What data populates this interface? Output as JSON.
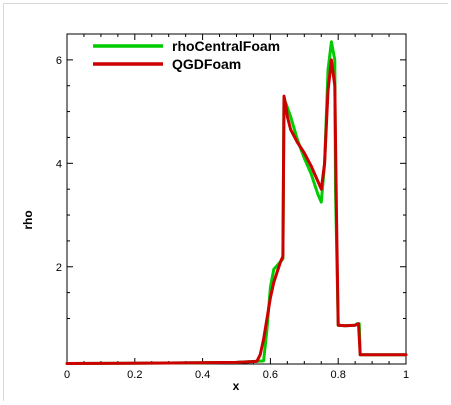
{
  "chart_data": {
    "type": "line",
    "title": "",
    "xlabel": "x",
    "ylabel": "rho",
    "xlim": [
      0,
      1
    ],
    "ylim": [
      0.12,
      6.5
    ],
    "xticks": [
      0,
      0.2,
      0.4,
      0.6,
      0.8,
      1
    ],
    "xtick_labels": [
      "0",
      "0.2",
      "0.4",
      "0.6",
      "0.8",
      "1"
    ],
    "yticks": [
      2,
      4,
      6
    ],
    "ytick_labels": [
      "2",
      "4",
      "6"
    ],
    "grid": false,
    "legend_position": "top-left",
    "series": [
      {
        "name": "rhoCentralFoam",
        "color": "#00cc00",
        "x": [
          0,
          0.3,
          0.5,
          0.58,
          0.59,
          0.6,
          0.61,
          0.63,
          0.637,
          0.64,
          0.646,
          0.66,
          0.68,
          0.7,
          0.72,
          0.74,
          0.75,
          0.76,
          0.77,
          0.78,
          0.79,
          0.792,
          0.8,
          0.82,
          0.85,
          0.855,
          0.862,
          0.865,
          0.9,
          0.95,
          1.0
        ],
        "y": [
          0.13,
          0.14,
          0.15,
          0.18,
          0.8,
          1.6,
          1.95,
          2.1,
          2.15,
          5.25,
          5.15,
          4.9,
          4.45,
          4.1,
          3.8,
          3.4,
          3.25,
          4.0,
          5.8,
          6.35,
          6.0,
          3.5,
          0.87,
          0.86,
          0.87,
          0.9,
          0.9,
          0.3,
          0.3,
          0.3,
          0.3
        ]
      },
      {
        "name": "QGDFoam",
        "color": "#cc0000",
        "x": [
          0,
          0.3,
          0.5,
          0.56,
          0.57,
          0.58,
          0.59,
          0.6,
          0.61,
          0.62,
          0.63,
          0.637,
          0.64,
          0.646,
          0.65,
          0.66,
          0.68,
          0.7,
          0.72,
          0.74,
          0.75,
          0.76,
          0.77,
          0.78,
          0.79,
          0.795,
          0.8,
          0.82,
          0.85,
          0.86,
          0.865,
          0.9,
          0.95,
          1.0
        ],
        "y": [
          0.13,
          0.14,
          0.15,
          0.17,
          0.3,
          0.6,
          1.0,
          1.4,
          1.7,
          1.9,
          2.1,
          2.2,
          5.3,
          5.1,
          4.9,
          4.65,
          4.4,
          4.2,
          3.95,
          3.65,
          3.5,
          4.0,
          5.4,
          6.0,
          5.5,
          3.0,
          0.87,
          0.86,
          0.87,
          0.9,
          0.3,
          0.3,
          0.3,
          0.3
        ]
      }
    ]
  }
}
